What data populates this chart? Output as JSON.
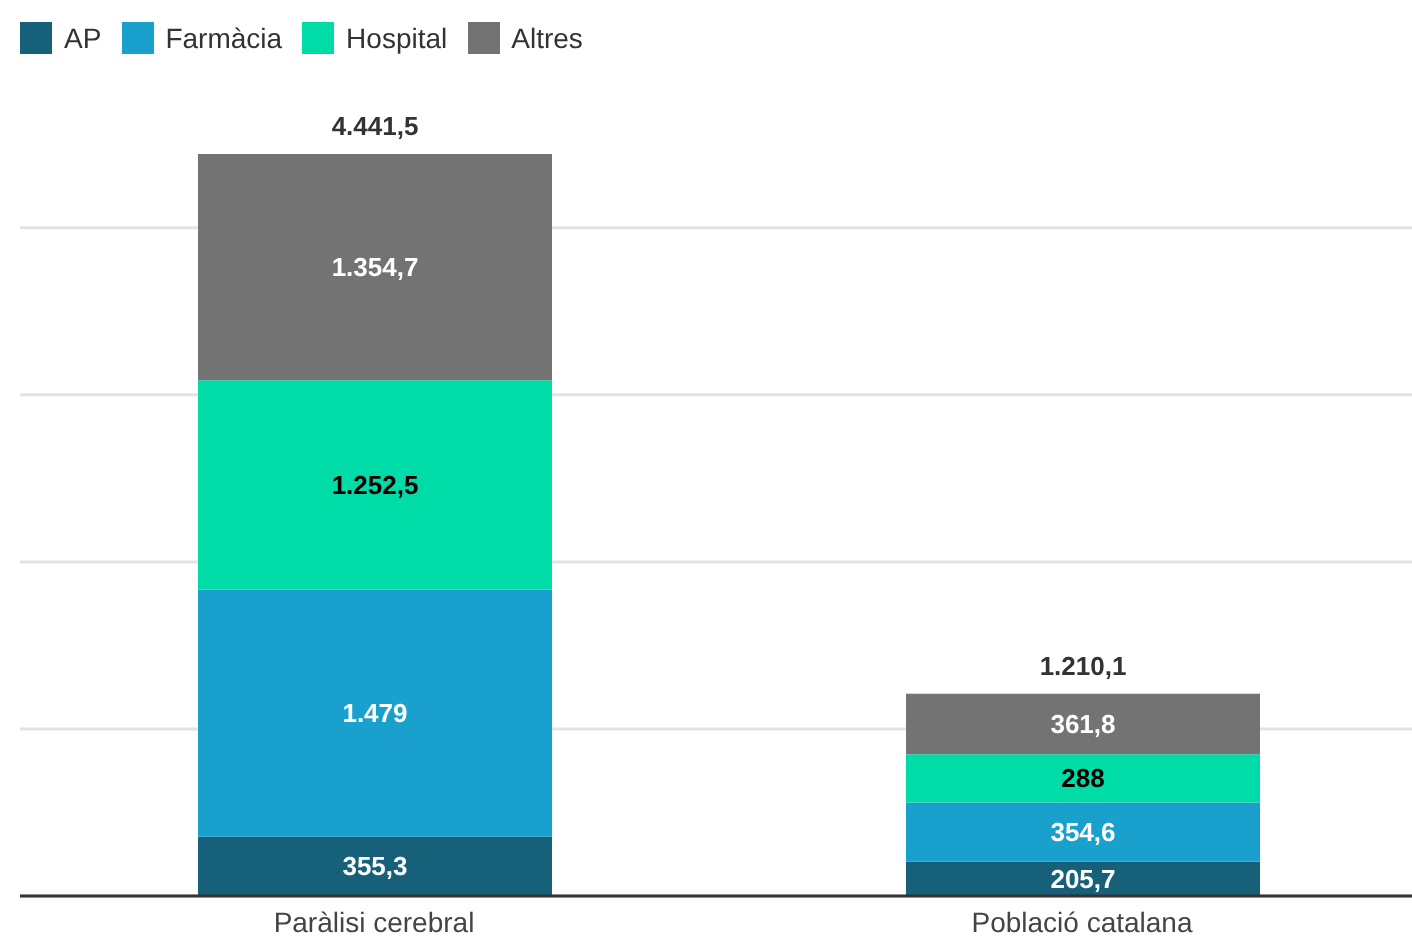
{
  "chart_data": {
    "type": "bar",
    "stacked": true,
    "categories": [
      "Paràlisi cerebral",
      "Població catalana"
    ],
    "series": [
      {
        "name": "AP",
        "color": "#176079",
        "values": [
          355.3,
          205.7
        ],
        "value_labels": [
          "355,3",
          "205,7"
        ]
      },
      {
        "name": "Farmàcia",
        "color": "#1aa0cd",
        "values": [
          1479,
          354.6
        ],
        "value_labels": [
          "1.479",
          "354,6"
        ]
      },
      {
        "name": "Hospital",
        "color": "#00dca8",
        "values": [
          1252.5,
          288
        ],
        "value_labels": [
          "1.252,5",
          "288"
        ]
      },
      {
        "name": "Altres",
        "color": "#737373",
        "values": [
          1354.7,
          361.8
        ],
        "value_labels": [
          "1.354,7",
          "361,8"
        ]
      }
    ],
    "totals": [
      "4.441,5",
      "1.210,1"
    ],
    "yticks": [
      {
        "value": 0,
        "label": null
      },
      {
        "value": 1000,
        "label": null
      },
      {
        "value": 2000,
        "label": null
      },
      {
        "value": 3000,
        "label": null
      },
      {
        "value": 4000,
        "label": null
      }
    ],
    "grid": "y",
    "legend": "top left",
    "tick_labels": "x"
  }
}
